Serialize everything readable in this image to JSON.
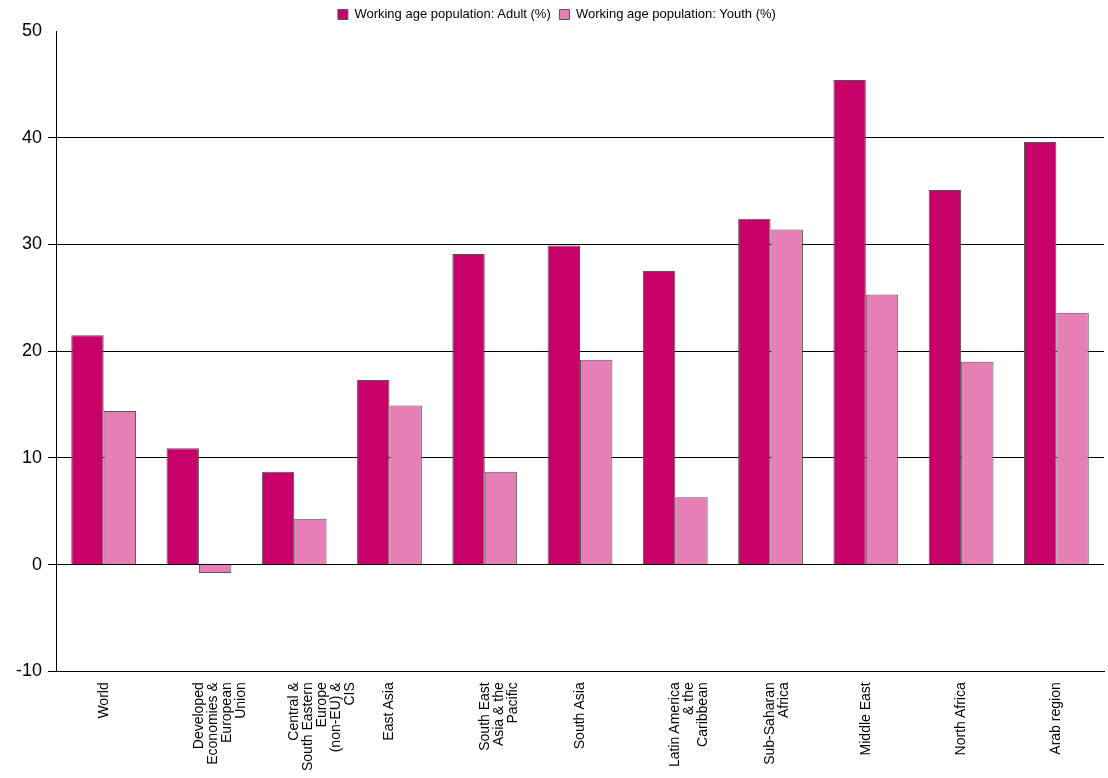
{
  "chart_data": {
    "type": "bar",
    "categories": [
      "World",
      "Developed Economies & European Union",
      "Central & South Eastern Europe (non-EU) & CIS",
      "East Asia",
      "South East Asia & the Pacific",
      "South Asia",
      "Latin America & the Caribbean",
      "Sub-Saharan Africa",
      "Middle East",
      "North Africa",
      "Arab region"
    ],
    "series": [
      {
        "name": "Working age population: Adult (%)",
        "color": "#c8006a",
        "values": [
          21.5,
          10.9,
          8.7,
          17.3,
          29.1,
          29.9,
          27.5,
          32.4,
          45.4,
          35.1,
          39.6
        ]
      },
      {
        "name": "Working age population: Youth (%)",
        "color": "#e57fb5",
        "values": [
          14.4,
          -0.8,
          4.3,
          14.9,
          8.7,
          19.2,
          6.3,
          31.4,
          25.3,
          19.0,
          23.6
        ]
      }
    ],
    "ylim": [
      -10,
      50
    ],
    "yticks": [
      -10,
      0,
      10,
      20,
      30,
      40,
      50
    ],
    "grid": "y",
    "legend": "top"
  }
}
